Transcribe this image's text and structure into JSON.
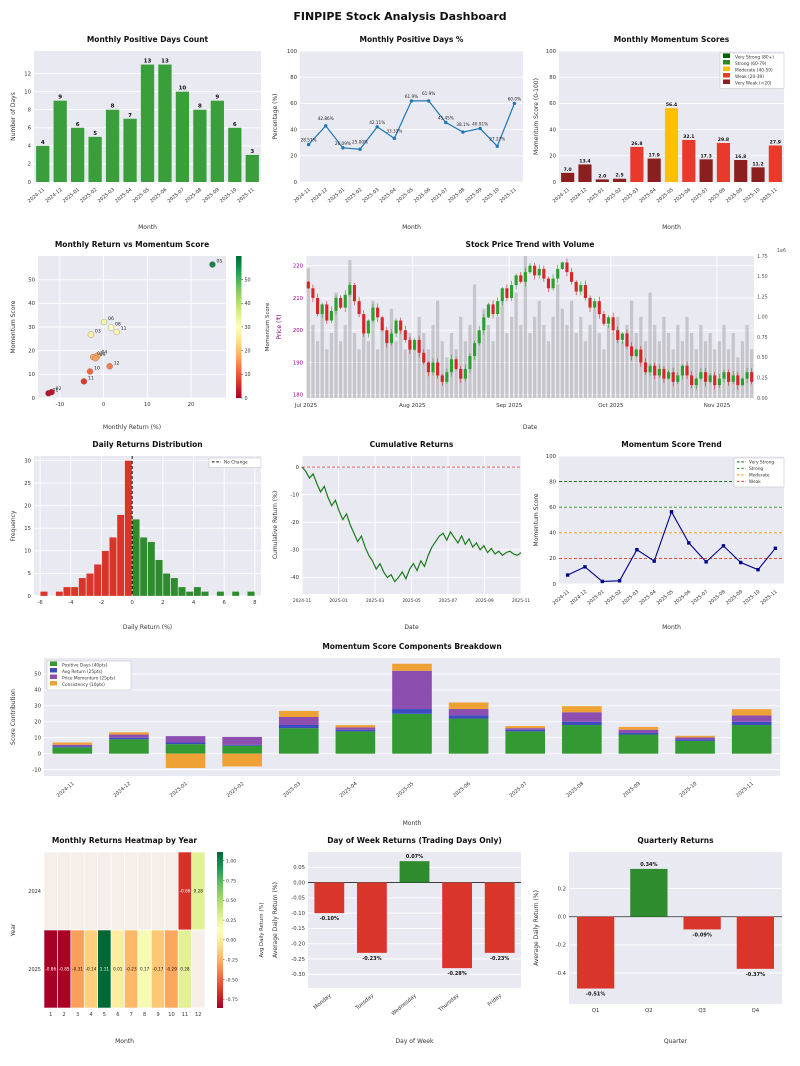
{
  "dashboard": {
    "title": "FINPIPE Stock Analysis Dashboard"
  },
  "theme": {
    "axes_bg": "#e9e9f2",
    "grid": "#ffffff",
    "up_color": "#2ca02c",
    "down_color": "#d62728",
    "volume_color": "#9a9a9a"
  },
  "months": [
    "2024-11",
    "2024-12",
    "2025-01",
    "2025-02",
    "2025-03",
    "2025-04",
    "2025-05",
    "2025-06",
    "2025-07",
    "2025-08",
    "2025-09",
    "2025-10",
    "2025-11"
  ],
  "chart_data": [
    {
      "id": "positive-days-count",
      "type": "bar",
      "title": "Monthly Positive Days Count",
      "xlabel": "Month",
      "ylabel": "Number of Days",
      "values": [
        4,
        9,
        6,
        5,
        8,
        7,
        13,
        13,
        10,
        8,
        9,
        6,
        3
      ],
      "bar_color": "#3a9e3a",
      "ylim": [
        0,
        14.5
      ],
      "yticks": [
        0,
        2,
        4,
        6,
        8,
        10,
        12
      ],
      "value_labels": true
    },
    {
      "id": "positive-days-pct",
      "type": "line",
      "title": "Monthly Positive Days %",
      "xlabel": "Month",
      "ylabel": "Percentage (%)",
      "values": [
        28.57,
        42.86,
        26.09,
        25.0,
        42.11,
        33.33,
        61.9,
        61.9,
        45.45,
        38.1,
        40.91,
        27.27,
        60.0
      ],
      "labels": [
        "28.57%",
        "42.86%",
        "26.09%",
        "25.00%",
        "42.11%",
        "33.33%",
        "61.9%",
        "61.9%",
        "45.45%",
        "38.1%",
        "40.91%",
        "27.27%",
        "60.0%"
      ],
      "line_color": "#1f77b4",
      "ylim": [
        0,
        100
      ],
      "yticks": [
        0,
        20,
        40,
        60,
        80,
        100
      ]
    },
    {
      "id": "momentum-scores",
      "type": "bar",
      "title": "Monthly Momentum Scores",
      "xlabel": "Month",
      "ylabel": "Momentum Score (0-100)",
      "values": [
        7.0,
        13.4,
        2.0,
        2.5,
        26.8,
        17.9,
        56.4,
        32.1,
        17.3,
        29.8,
        16.8,
        11.2,
        27.9
      ],
      "ylim": [
        0,
        100
      ],
      "yticks": [
        0,
        20,
        40,
        60,
        80,
        100
      ],
      "value_labels": true,
      "color_rules": [
        {
          "min": 80,
          "color": "#006400",
          "label": "Very Strong (80+)"
        },
        {
          "min": 60,
          "color": "#2e8b22",
          "label": "Strong (60-79)"
        },
        {
          "min": 40,
          "color": "#ffc000",
          "label": "Moderate (40-59)"
        },
        {
          "min": 20,
          "color": "#e8392b",
          "label": "Weak (20-39)"
        },
        {
          "min": 0,
          "color": "#8b1e1e",
          "label": "Very Weak (<20)"
        }
      ]
    },
    {
      "id": "return-vs-momentum",
      "type": "scatter",
      "title": "Monthly Return vs Momentum Score",
      "xlabel": "Monthly Return (%)",
      "ylabel": "Momentum Score",
      "colorbar_label": "Momentum Score",
      "points": [
        {
          "label": "11",
          "x": -4.5,
          "y": 7.0
        },
        {
          "label": "12",
          "x": 1.4,
          "y": 13.4
        },
        {
          "label": "01",
          "x": -12.6,
          "y": 2.0
        },
        {
          "label": "02",
          "x": -11.9,
          "y": 2.5
        },
        {
          "label": "03",
          "x": -2.9,
          "y": 26.8
        },
        {
          "label": "04",
          "x": -1.4,
          "y": 17.9
        },
        {
          "label": "05",
          "x": 24.9,
          "y": 56.4
        },
        {
          "label": "06",
          "x": 0.1,
          "y": 32.1
        },
        {
          "label": "07",
          "x": -2.4,
          "y": 17.3
        },
        {
          "label": "08",
          "x": 1.7,
          "y": 29.8
        },
        {
          "label": "09",
          "x": -1.8,
          "y": 16.8
        },
        {
          "label": "10",
          "x": -3.1,
          "y": 11.2
        },
        {
          "label": "11",
          "x": 3.0,
          "y": 27.9
        }
      ],
      "xlim": [
        -15,
        28
      ],
      "ylim": [
        0,
        60
      ],
      "xticks": [
        -10,
        0,
        10,
        20
      ],
      "yticks": [
        0,
        10,
        20,
        30,
        40,
        50
      ]
    },
    {
      "id": "price-volume",
      "type": "candlestick",
      "title": "Stock Price Trend with Volume",
      "xlabel": "Date",
      "ylabel": "Price (₹)",
      "ylabel_color": "#8b008b",
      "y2_unit": "1e6",
      "closes": [
        213,
        210,
        205,
        208,
        203,
        206,
        210,
        207,
        211,
        214,
        209,
        205,
        199,
        203,
        207,
        204,
        200,
        196,
        199,
        203,
        200,
        197,
        194,
        197,
        193,
        190,
        187,
        190,
        186,
        184,
        187,
        191,
        188,
        185,
        188,
        192,
        196,
        200,
        204,
        208,
        205,
        209,
        213,
        210,
        214,
        217,
        215,
        218,
        220,
        217,
        219,
        216,
        213,
        216,
        219,
        221,
        218,
        215,
        212,
        214,
        210,
        207,
        209,
        205,
        202,
        204,
        200,
        197,
        199,
        195,
        192,
        194,
        190,
        187,
        189,
        186,
        188,
        185,
        187,
        184,
        186,
        189,
        186,
        183,
        185,
        187,
        184,
        186,
        183,
        185,
        187,
        184,
        186,
        183,
        185,
        187,
        184
      ],
      "volumes": [
        1.6,
        0.9,
        0.7,
        1.1,
        0.6,
        0.8,
        1.3,
        0.7,
        0.9,
        1.7,
        0.8,
        0.6,
        1.0,
        0.7,
        1.2,
        0.6,
        0.9,
        0.8,
        1.1,
        0.7,
        0.9,
        0.6,
        0.8,
        0.7,
        1.0,
        0.8,
        0.6,
        0.9,
        1.2,
        0.7,
        0.5,
        0.8,
        0.6,
        1.0,
        0.7,
        0.9,
        1.4,
        0.8,
        1.1,
        0.9,
        0.7,
        1.0,
        1.2,
        0.8,
        1.0,
        1.3,
        0.9,
        1.75,
        0.8,
        1.0,
        1.2,
        0.9,
        0.7,
        1.0,
        1.4,
        1.1,
        0.9,
        1.2,
        0.8,
        1.0,
        0.7,
        0.9,
        1.1,
        0.8,
        0.6,
        0.9,
        0.8,
        1.0,
        0.7,
        0.9,
        1.2,
        0.8,
        1.0,
        0.7,
        1.3,
        0.9,
        0.7,
        1.0,
        0.8,
        0.6,
        0.9,
        0.7,
        1.0,
        0.8,
        0.6,
        0.9,
        0.7,
        0.8,
        0.6,
        0.7,
        0.9,
        0.6,
        0.8,
        0.5,
        0.7,
        0.9,
        0.6
      ],
      "month_ticks": [
        {
          "index": 0,
          "label": "Jul 2025"
        },
        {
          "index": 23,
          "label": "Aug 2025"
        },
        {
          "index": 44,
          "label": "Sep 2025"
        },
        {
          "index": 66,
          "label": "Oct 2025"
        },
        {
          "index": 89,
          "label": "Nov 2025"
        }
      ],
      "ylim": [
        179,
        223
      ],
      "yticks": [
        180,
        190,
        200,
        210,
        220
      ],
      "vol_max": 1.75
    },
    {
      "id": "daily-returns-dist",
      "type": "histogram",
      "title": "Daily Returns Distribution",
      "xlabel": "Daily Return (%)",
      "ylabel": "Frequency",
      "bin_start": -6,
      "bin_width": 0.5,
      "counts": [
        1,
        0,
        1,
        2,
        2,
        4,
        5,
        7,
        10,
        13,
        18,
        30,
        17,
        13,
        12,
        8,
        5,
        4,
        2,
        1,
        2,
        1,
        0,
        1,
        0,
        1,
        0,
        1
      ],
      "neg_color": "#d9352a",
      "pos_color": "#2e8b2e",
      "vline_label": "No Change",
      "xticks": [
        -6,
        -4,
        -2,
        0,
        2,
        4,
        6,
        8
      ],
      "yticks": [
        0,
        5,
        10,
        15,
        20,
        25,
        30
      ]
    },
    {
      "id": "cumulative-returns",
      "type": "cumline",
      "title": "Cumulative Returns",
      "xlabel": "Date",
      "ylabel": "Cumulative Return (%)",
      "line_color": "#1a7a1a",
      "values": [
        0,
        -1.5,
        -4,
        -2.5,
        -6,
        -9,
        -7,
        -11,
        -14,
        -12,
        -16,
        -19,
        -17,
        -21,
        -24,
        -27,
        -25,
        -29,
        -32,
        -34,
        -37,
        -35,
        -38,
        -40,
        -39,
        -41.5,
        -40,
        -38,
        -40.5,
        -37,
        -35,
        -37.5,
        -34,
        -36,
        -32,
        -29,
        -27,
        -25,
        -24,
        -26.5,
        -23.5,
        -25.5,
        -27.5,
        -25,
        -28,
        -26,
        -29,
        -27.5,
        -30,
        -28.5,
        -31,
        -29.5,
        -31.5,
        -30.5,
        -32,
        -31,
        -30.5,
        -31.5,
        -32,
        -31
      ],
      "x_tick_labels": [
        "2024-11",
        "2025-01",
        "2025-03",
        "2025-05",
        "2025-07",
        "2025-09",
        "2025-11"
      ],
      "ylim": [
        -46,
        4
      ],
      "yticks": [
        0,
        -10,
        -20,
        -30,
        -40
      ],
      "zero_line_color": "#e05252"
    },
    {
      "id": "momentum-trend",
      "type": "trendline",
      "title": "Momentum Score Trend",
      "xlabel": "Month",
      "ylabel": "Momentum Score",
      "values": [
        7.0,
        13.4,
        2.0,
        2.5,
        26.8,
        17.9,
        56.4,
        32.1,
        17.3,
        29.8,
        16.8,
        11.2,
        27.9
      ],
      "line_color": "#00008b",
      "ylim": [
        0,
        100
      ],
      "yticks": [
        0,
        20,
        40,
        60,
        80,
        100
      ],
      "ref_lines": [
        {
          "y": 80,
          "color": "#006400",
          "label": "Very Strong"
        },
        {
          "y": 60,
          "color": "#2e8b22",
          "label": "Strong"
        },
        {
          "y": 40,
          "color": "#ff8c00",
          "label": "Moderate"
        },
        {
          "y": 20,
          "color": "#d9352a",
          "label": "Weak"
        }
      ]
    },
    {
      "id": "momentum-components",
      "type": "stacked_bar",
      "title": "Momentum Score Components Breakdown",
      "xlabel": "Month",
      "ylabel": "Score Contribution",
      "series": [
        {
          "name": "Positive Days (40pts)",
          "color": "#339933",
          "values": [
            4,
            9,
            6,
            5,
            16,
            14,
            25,
            22,
            14,
            18,
            12,
            8,
            18
          ]
        },
        {
          "name": "Avg Return (25pts)",
          "color": "#3b4cc0",
          "values": [
            0.6,
            1,
            1,
            0.5,
            2,
            1,
            3,
            2,
            1,
            2,
            1,
            1,
            2
          ]
        },
        {
          "name": "Price Momentum (25pts)",
          "color": "#8c4faf",
          "values": [
            1,
            2,
            4,
            5,
            5,
            1.5,
            24,
            4,
            1,
            6,
            2,
            1.2,
            4
          ]
        },
        {
          "name": "Consistency (10pts)",
          "color": "#eea236",
          "values": [
            1.4,
            1.4,
            -9,
            -8,
            3.8,
            1.4,
            4.4,
            4.1,
            1.3,
            3.8,
            1.8,
            1,
            3.9
          ]
        }
      ],
      "ylim": [
        -14,
        60
      ],
      "yticks": [
        -10,
        0,
        10,
        20,
        30,
        40,
        50
      ]
    },
    {
      "id": "returns-heatmap",
      "type": "heatmap",
      "title": "Monthly Returns Heatmap by Year",
      "xlabel": "Month",
      "ylabel": "Year",
      "colorbar_label": "Avg Daily Return (%)",
      "rows": [
        "2024",
        "2025"
      ],
      "cols": [
        "1",
        "2",
        "3",
        "4",
        "5",
        "6",
        "7",
        "8",
        "9",
        "10",
        "11",
        "12"
      ],
      "values": [
        [
          null,
          null,
          null,
          null,
          null,
          null,
          null,
          null,
          null,
          null,
          -0.66,
          0.28
        ],
        [
          -0.86,
          -0.85,
          -0.31,
          -0.14,
          1.11,
          0.01,
          -0.23,
          0.17,
          -0.17,
          -0.29,
          0.28,
          null
        ]
      ],
      "vmin": -0.86,
      "vmax": 1.11,
      "colorbar_ticks": [
        1.0,
        0.75,
        0.5,
        0.25,
        0.0,
        -0.25,
        -0.5,
        -0.75
      ]
    },
    {
      "id": "day-of-week",
      "type": "signed_bar",
      "title": "Day of Week Returns (Trading Days Only)",
      "xlabel": "Day of Week",
      "ylabel": "Average Daily Return (%)",
      "categories": [
        "Monday",
        "Tuesday",
        "Wednesday",
        "Thursday",
        "Friday"
      ],
      "values": [
        -0.1,
        -0.23,
        0.07,
        -0.28,
        -0.23
      ],
      "labels": [
        "-0.10%",
        "-0.23%",
        "0.07%",
        "-0.28%",
        "-0.23%"
      ],
      "ylim": [
        -0.345,
        0.1
      ],
      "yticks": [
        0.05,
        0.0,
        -0.05,
        -0.1,
        -0.15,
        -0.2,
        -0.25,
        -0.3
      ],
      "rotate_ticks": true,
      "tick_decimals": 2
    },
    {
      "id": "quarterly-returns",
      "type": "signed_bar",
      "title": "Quarterly Returns",
      "xlabel": "Quarter",
      "ylabel": "Average Daily Return (%)",
      "categories": [
        "Q1",
        "Q2",
        "Q3",
        "Q4"
      ],
      "values": [
        -0.51,
        0.34,
        -0.09,
        -0.37
      ],
      "labels": [
        "-0.51%",
        "0.34%",
        "-0.09%",
        "-0.37%"
      ],
      "ylim": [
        -0.62,
        0.46
      ],
      "yticks": [
        0.2,
        0.0,
        -0.2,
        -0.4
      ],
      "rotate_ticks": false,
      "tick_decimals": 1
    }
  ]
}
